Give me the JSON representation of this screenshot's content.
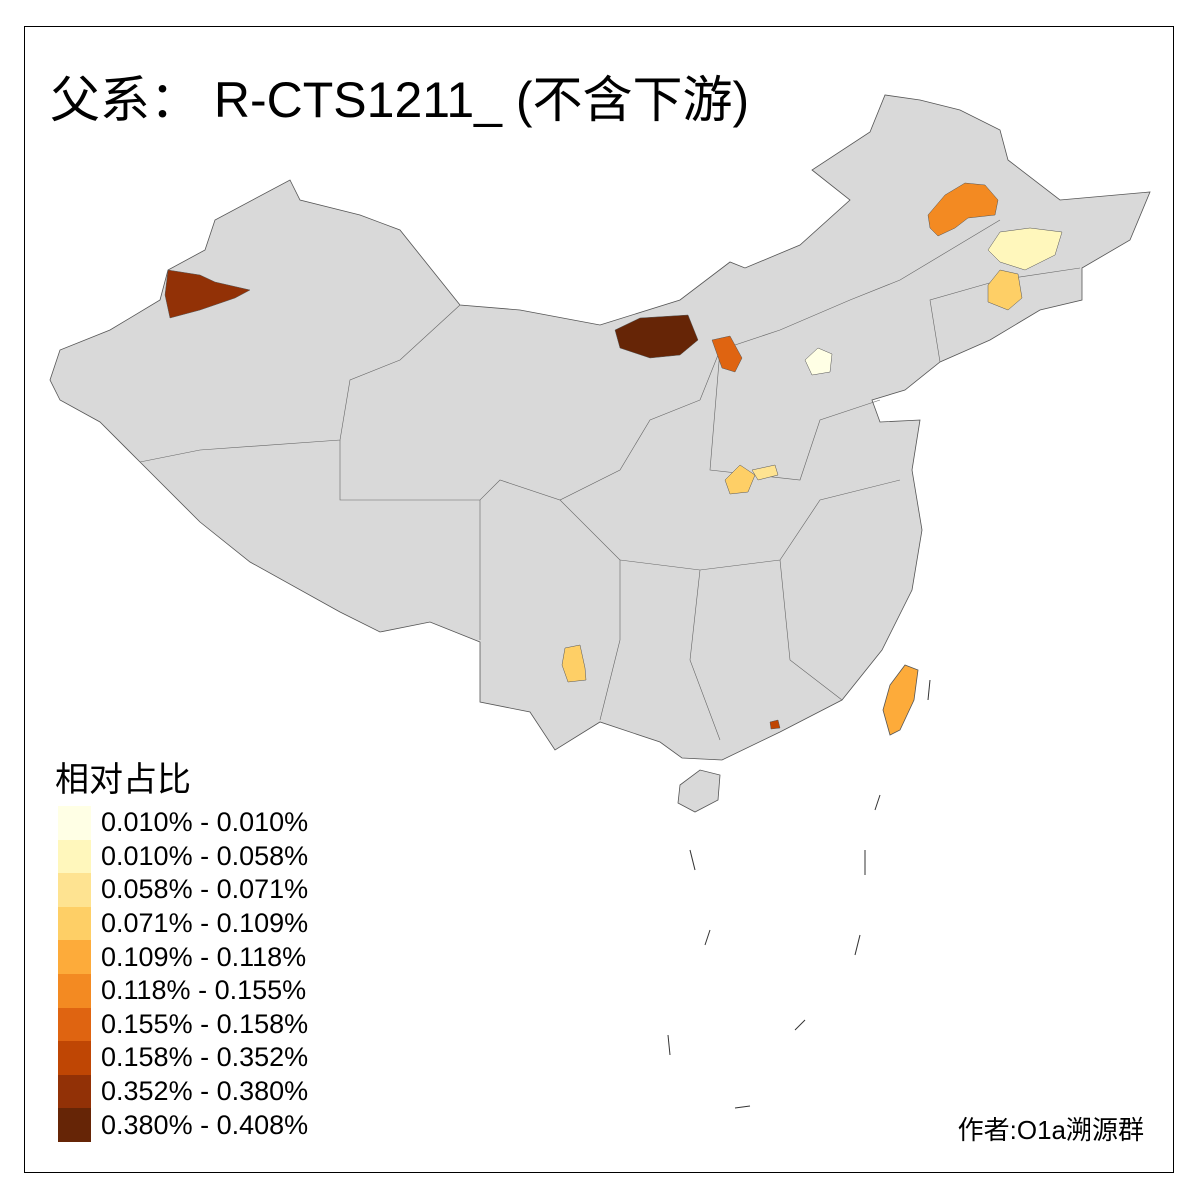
{
  "title": "父系： R-CTS1211_ (不含下游)",
  "legend": {
    "title": "相对占比",
    "items": [
      {
        "label": "0.010% - 0.010%",
        "color": "#FFFFE5"
      },
      {
        "label": "0.010% - 0.058%",
        "color": "#FFF7BC"
      },
      {
        "label": "0.058% - 0.071%",
        "color": "#FEE391"
      },
      {
        "label": "0.071% - 0.109%",
        "color": "#FECF66"
      },
      {
        "label": "0.109% - 0.118%",
        "color": "#FDAB3A"
      },
      {
        "label": "0.118% - 0.155%",
        "color": "#F38A22"
      },
      {
        "label": "0.155% - 0.158%",
        "color": "#DF6411"
      },
      {
        "label": "0.158% - 0.352%",
        "color": "#BF4604"
      },
      {
        "label": "0.352% - 0.380%",
        "color": "#923106"
      },
      {
        "label": "0.380% - 0.408%",
        "color": "#662506"
      }
    ]
  },
  "credit": "作者:O1a溯源群",
  "base_color": "#D9D9D9"
}
